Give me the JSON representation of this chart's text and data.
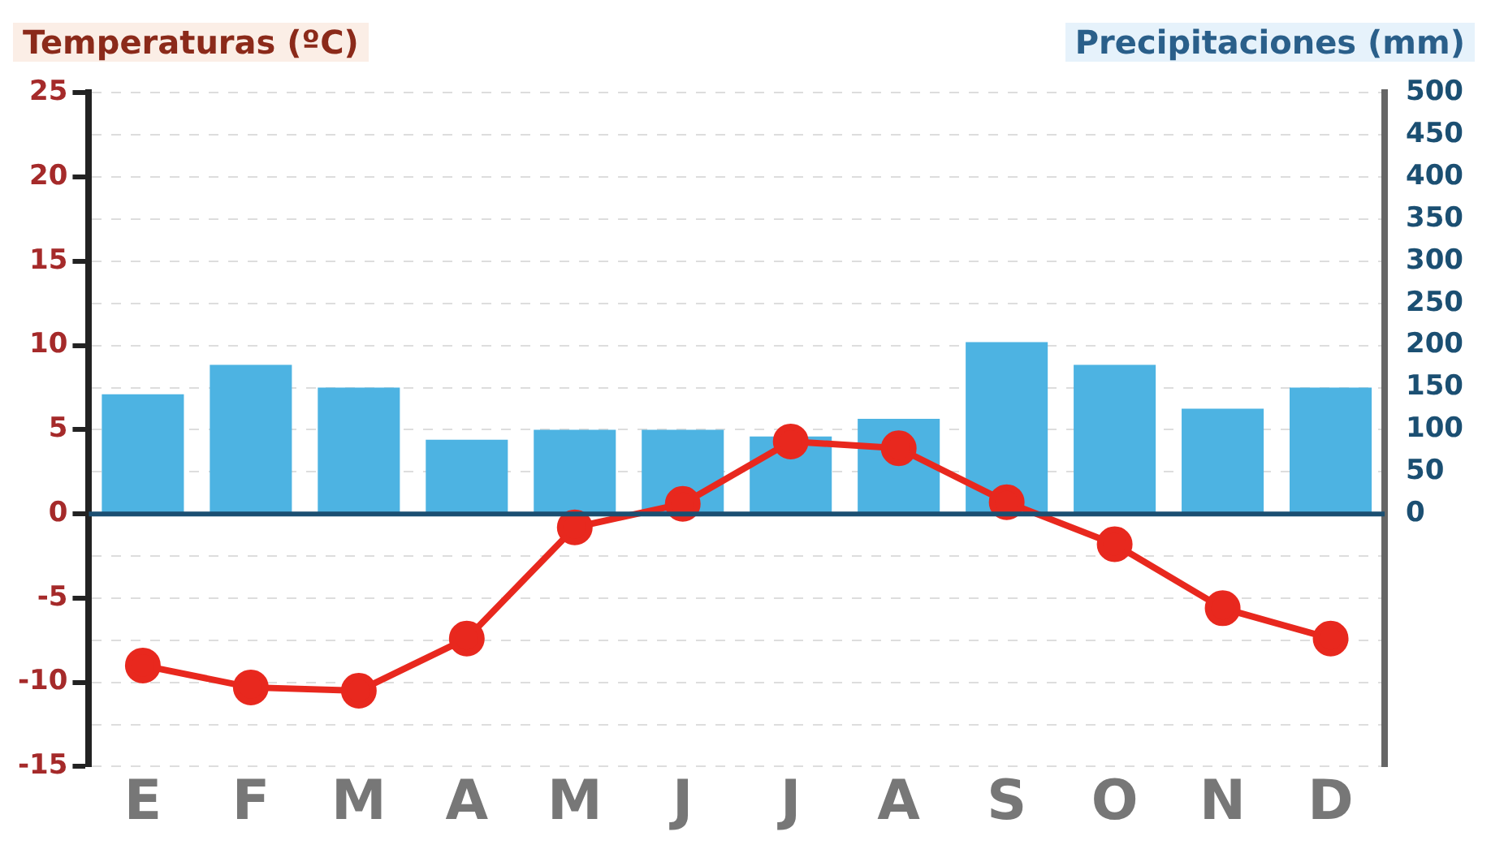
{
  "chart_data": {
    "type": "bar",
    "ylabel": "Temperaturas (ºC)",
    "y2label": "Precipitaciones (mm)",
    "categories": [
      "E",
      "F",
      "M",
      "A",
      "M",
      "J",
      "J",
      "A",
      "S",
      "O",
      "N",
      "D"
    ],
    "series": [
      {
        "axis": "y2",
        "color": "#4db3e2",
        "values": [
          142,
          177,
          150,
          88,
          100,
          100,
          92,
          113,
          204,
          177,
          125,
          150
        ]
      },
      {
        "type": "line",
        "axis": "y",
        "color": "#e8281e",
        "marker": "circle",
        "values": [
          -9,
          -10.3,
          -10.5,
          -7.4,
          -0.8,
          0.6,
          4.3,
          3.9,
          0.7,
          -1.8,
          -5.6,
          -7.4
        ]
      }
    ],
    "ylim": [
      -15,
      25
    ],
    "yticks": [
      -15,
      -10,
      -5,
      0,
      5,
      10,
      15,
      20,
      25
    ],
    "y2lim": [
      -300,
      500
    ],
    "y2ticks": [
      0,
      50,
      100,
      150,
      200,
      250,
      300,
      350,
      400,
      450,
      500
    ],
    "ref_lines": [
      {
        "axis": "y",
        "value": 0,
        "color": "#1b4f72"
      }
    ],
    "grid": "y",
    "legend": false
  }
}
